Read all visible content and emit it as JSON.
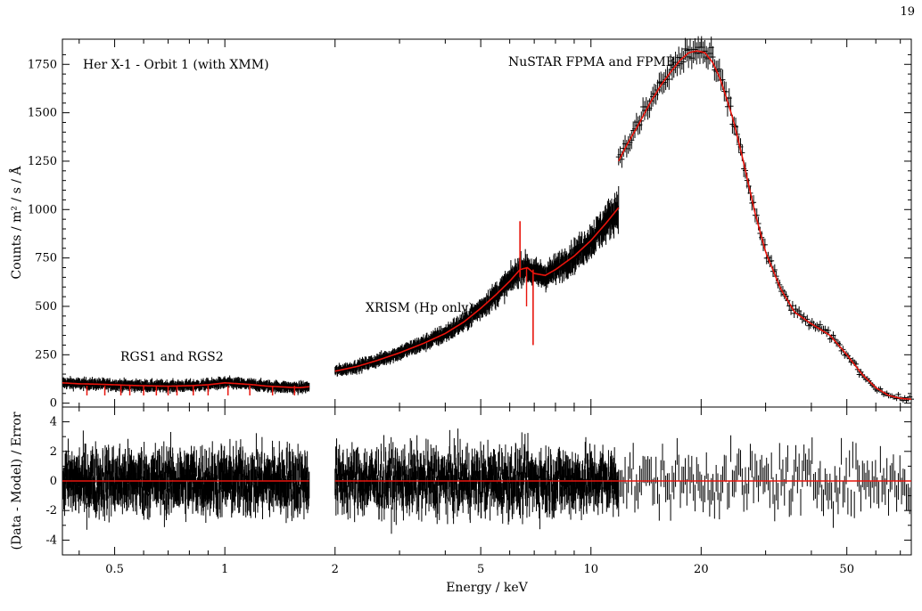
{
  "page_number": "19",
  "chart_data": [
    {
      "type": "line",
      "panel": "spectrum",
      "title": "",
      "xscale": "log",
      "xlim": [
        0.36,
        75
      ],
      "ylim": [
        -20,
        1880
      ],
      "ylabel": "Counts / m² / s / Å",
      "yticks": [
        0,
        250,
        500,
        750,
        1000,
        1250,
        1500,
        1750
      ],
      "annotations": [
        "Her X-1 - Orbit 1 (with XMM)",
        "NuSTAR FPMA and FPMB",
        "XRISM (Hp only)",
        "RGS1 and RGS2"
      ],
      "data_color": "#000000",
      "model_color": "#e8140c",
      "series": [
        {
          "name": "RGS1 and RGS2",
          "x": [
            0.36,
            0.4,
            0.45,
            0.5,
            0.55,
            0.6,
            0.7,
            0.8,
            0.9,
            1.0,
            1.1,
            1.2,
            1.3,
            1.4,
            1.5,
            1.6,
            1.7
          ],
          "y": [
            105,
            100,
            98,
            95,
            92,
            90,
            88,
            90,
            95,
            105,
            100,
            95,
            88,
            85,
            82,
            80,
            85
          ]
        },
        {
          "name": "XRISM (Hp only)",
          "x": [
            2.0,
            2.3,
            2.6,
            3.0,
            3.5,
            4.0,
            4.5,
            5.0,
            5.5,
            6.0,
            6.4,
            6.7,
            7.0,
            7.5,
            8.0,
            9.0,
            10.0,
            11.0,
            11.9
          ],
          "y": [
            165,
            190,
            220,
            260,
            310,
            360,
            420,
            490,
            560,
            630,
            690,
            700,
            670,
            660,
            690,
            760,
            840,
            930,
            1010
          ]
        },
        {
          "name": "NuSTAR FPMA and FPMB",
          "x": [
            11.9,
            12.5,
            13.5,
            14.5,
            15.5,
            16.5,
            17.5,
            18.5,
            19.5,
            20.5,
            21.5,
            22.5,
            23.5,
            24.5,
            26,
            28,
            30,
            33,
            36,
            40,
            45,
            50,
            55,
            60,
            65,
            70,
            75
          ],
          "y": [
            1250,
            1330,
            1440,
            1550,
            1640,
            1710,
            1770,
            1810,
            1820,
            1810,
            1760,
            1680,
            1570,
            1460,
            1260,
            990,
            780,
            590,
            470,
            410,
            350,
            250,
            150,
            80,
            40,
            25,
            20
          ]
        }
      ]
    },
    {
      "type": "scatter",
      "panel": "residuals",
      "title": "",
      "xscale": "log",
      "xlim": [
        0.36,
        75
      ],
      "ylim": [
        -5,
        5
      ],
      "xlabel": "Energy / keV",
      "ylabel": "(Data - Model) / Error",
      "xticks": [
        0.5,
        1,
        2,
        5,
        10,
        20,
        50
      ],
      "xtick_labels": [
        "0.5",
        "1",
        "2",
        "5",
        "10",
        "20",
        "50"
      ],
      "yticks": [
        -4,
        -2,
        0,
        2,
        4
      ],
      "zero_line_color": "#e8140c",
      "segments": [
        [
          0.36,
          1.7
        ],
        [
          2.0,
          11.9
        ],
        [
          11.9,
          75
        ]
      ],
      "residual_spread": 2.0
    }
  ]
}
